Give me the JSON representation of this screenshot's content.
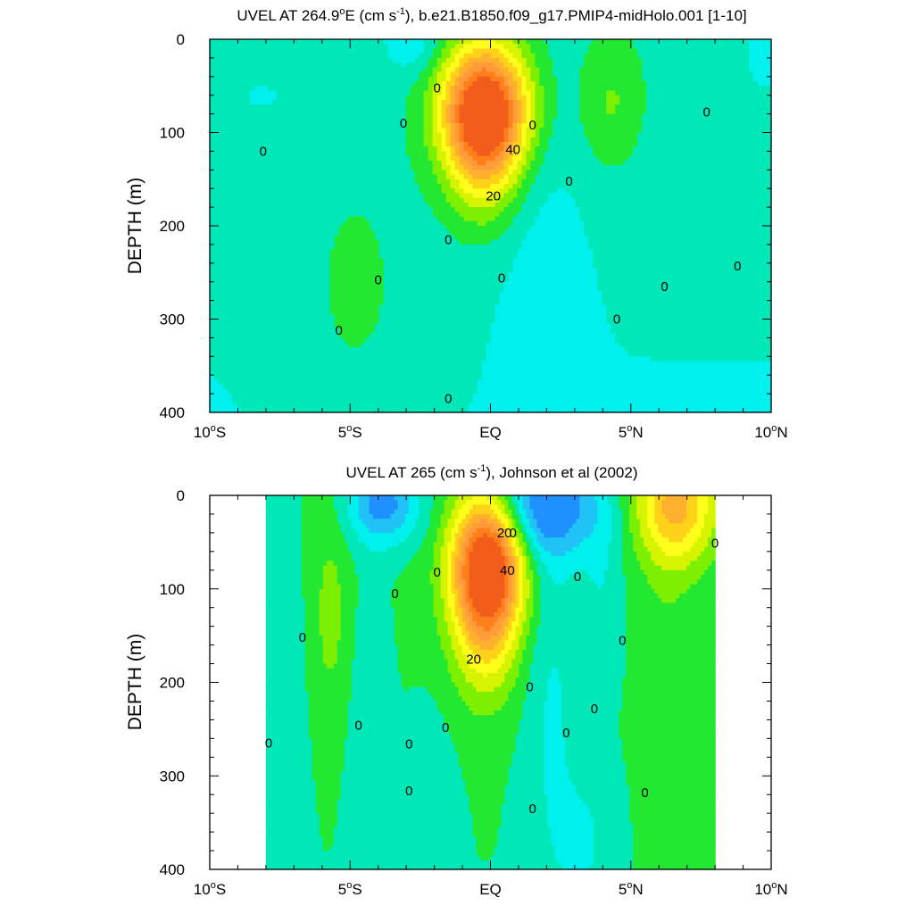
{
  "colors": {
    "levels": [
      {
        "max": -20,
        "color": "#0a5fe0"
      },
      {
        "max": -10,
        "color": "#1e90ff"
      },
      {
        "max": -5,
        "color": "#21c2f5"
      },
      {
        "max": 0,
        "color": "#00f0ee"
      },
      {
        "max": 5,
        "color": "#00e8b8"
      },
      {
        "max": 10,
        "color": "#22e832"
      },
      {
        "max": 15,
        "color": "#7cf000"
      },
      {
        "max": 20,
        "color": "#d6f400"
      },
      {
        "max": 25,
        "color": "#fffe1a"
      },
      {
        "max": 30,
        "color": "#ffd21a"
      },
      {
        "max": 35,
        "color": "#ffb02e"
      },
      {
        "max": 40,
        "color": "#ff9b3a"
      },
      {
        "max": 45,
        "color": "#ff7f1a"
      },
      {
        "max": 999,
        "color": "#f25d1b"
      }
    ]
  },
  "chart_data": [
    {
      "type": "heatmap",
      "subtype": "contour",
      "title": "UVEL AT 264.9°E (cm s-1), b.e21.B1850.f09_g17.PMIP4-midHolo.001 [1-10]",
      "title_parts": {
        "pre": "UVEL AT 264.9",
        "deg": "o",
        "mid": "E (cm s",
        "sup": "-1",
        "post": "), b.e21.B1850.f09_g17.PMIP4-midHolo.001 [1-10]"
      },
      "xlabel": "",
      "ylabel": "DEPTH (m)",
      "xlim": [
        -10,
        10
      ],
      "ylim": [
        400,
        0
      ],
      "x_ticks": [
        {
          "value": -10,
          "label": "10",
          "deg": "o",
          "suffix": "S"
        },
        {
          "value": -5,
          "label": "5",
          "deg": "o",
          "suffix": "S"
        },
        {
          "value": 0,
          "label": "EQ",
          "deg": "",
          "suffix": ""
        },
        {
          "value": 5,
          "label": "5",
          "deg": "o",
          "suffix": "N"
        },
        {
          "value": 10,
          "label": "10",
          "deg": "o",
          "suffix": "N"
        }
      ],
      "y_ticks": [
        0,
        100,
        200,
        300,
        400
      ],
      "data_xlim": [
        -10,
        10
      ],
      "contour_interval": 5,
      "contour_labels": [
        {
          "x": -1.9,
          "y": 52,
          "text": "0"
        },
        {
          "x": -8.1,
          "y": 120,
          "text": "0"
        },
        {
          "x": -3.1,
          "y": 90,
          "text": "0"
        },
        {
          "x": 1.5,
          "y": 92,
          "text": "0"
        },
        {
          "x": 7.7,
          "y": 78,
          "text": "0"
        },
        {
          "x": 2.8,
          "y": 152,
          "text": "0"
        },
        {
          "x": -1.5,
          "y": 215,
          "text": "0"
        },
        {
          "x": -4.0,
          "y": 258,
          "text": "0"
        },
        {
          "x": 0.4,
          "y": 256,
          "text": "0"
        },
        {
          "x": 6.2,
          "y": 265,
          "text": "0"
        },
        {
          "x": 8.8,
          "y": 243,
          "text": "0"
        },
        {
          "x": 4.5,
          "y": 300,
          "text": "0"
        },
        {
          "x": -5.4,
          "y": 312,
          "text": "0"
        },
        {
          "x": -1.5,
          "y": 385,
          "text": "0"
        },
        {
          "x": 0.8,
          "y": 118,
          "text": "40"
        },
        {
          "x": 0.1,
          "y": 168,
          "text": "20"
        }
      ],
      "features": [
        {
          "x": -0.2,
          "z": 75,
          "sx": 1.1,
          "sz": 50,
          "amp": 52
        },
        {
          "x": -0.3,
          "z": 140,
          "sx": 0.9,
          "sz": 50,
          "amp": 12
        },
        {
          "x": -2.8,
          "z": 5,
          "sx": 0.8,
          "sz": 25,
          "amp": -7
        },
        {
          "x": 9.8,
          "z": 15,
          "sx": 0.6,
          "sz": 30,
          "amp": -5
        },
        {
          "x": 4.3,
          "z": 70,
          "sx": 0.8,
          "sz": 50,
          "amp": 8
        },
        {
          "x": -4.8,
          "z": 300,
          "sx": 2.0,
          "sz": 140,
          "amp": 5
        },
        {
          "x": 2.0,
          "z": 300,
          "sx": 1.0,
          "sz": 160,
          "amp": -4
        },
        {
          "x": -8.0,
          "z": 60,
          "sx": 1.3,
          "sz": 25,
          "amp": -3
        }
      ],
      "background": {
        "base": 3,
        "deep_gain": 3.5
      }
    },
    {
      "type": "heatmap",
      "subtype": "contour",
      "title": "UVEL AT 265 (cm s-1), Johnson et al (2002)",
      "title_parts": {
        "pre": "UVEL AT 265 (cm s",
        "deg": "",
        "mid": "",
        "sup": "-1",
        "post": "), Johnson et al (2002)"
      },
      "xlabel": "",
      "ylabel": "DEPTH (m)",
      "xlim": [
        -10,
        10
      ],
      "ylim": [
        400,
        0
      ],
      "x_ticks": [
        {
          "value": -10,
          "label": "10",
          "deg": "o",
          "suffix": "S"
        },
        {
          "value": -5,
          "label": "5",
          "deg": "o",
          "suffix": "S"
        },
        {
          "value": 0,
          "label": "EQ",
          "deg": "",
          "suffix": ""
        },
        {
          "value": 5,
          "label": "5",
          "deg": "o",
          "suffix": "N"
        },
        {
          "value": 10,
          "label": "10",
          "deg": "o",
          "suffix": "N"
        }
      ],
      "y_ticks": [
        0,
        100,
        200,
        300,
        400
      ],
      "data_xlim": [
        -8,
        8
      ],
      "contour_interval": 5,
      "contour_labels": [
        {
          "x": 0.5,
          "y": 40,
          "text": "20"
        },
        {
          "x": 0.8,
          "y": 40,
          "text": "0"
        },
        {
          "x": -1.9,
          "y": 82,
          "text": "0"
        },
        {
          "x": -3.4,
          "y": 105,
          "text": "0"
        },
        {
          "x": 3.1,
          "y": 87,
          "text": "0"
        },
        {
          "x": 8.0,
          "y": 51,
          "text": "0"
        },
        {
          "x": 0.6,
          "y": 80,
          "text": "40"
        },
        {
          "x": -0.6,
          "y": 175,
          "text": "20"
        },
        {
          "x": -6.7,
          "y": 152,
          "text": "0"
        },
        {
          "x": 4.7,
          "y": 155,
          "text": "0"
        },
        {
          "x": 1.4,
          "y": 205,
          "text": "0"
        },
        {
          "x": 3.7,
          "y": 228,
          "text": "0"
        },
        {
          "x": -4.7,
          "y": 246,
          "text": "0"
        },
        {
          "x": -1.6,
          "y": 248,
          "text": "0"
        },
        {
          "x": -7.9,
          "y": 265,
          "text": "0"
        },
        {
          "x": -2.9,
          "y": 266,
          "text": "0"
        },
        {
          "x": 2.7,
          "y": 254,
          "text": "0"
        },
        {
          "x": -2.9,
          "y": 316,
          "text": "0"
        },
        {
          "x": 5.5,
          "y": 318,
          "text": "0"
        },
        {
          "x": 1.5,
          "y": 335,
          "text": "0"
        }
      ],
      "features": [
        {
          "x": -0.1,
          "z": 70,
          "sx": 0.9,
          "sz": 55,
          "amp": 50
        },
        {
          "x": -0.2,
          "z": 150,
          "sx": 0.8,
          "sz": 55,
          "amp": 14
        },
        {
          "x": 6.6,
          "z": 10,
          "sx": 1.0,
          "sz": 45,
          "amp": 26
        },
        {
          "x": -3.8,
          "z": 10,
          "sx": 0.9,
          "sz": 30,
          "amp": -18
        },
        {
          "x": 1.8,
          "z": 10,
          "sx": 1.5,
          "sz": 40,
          "amp": -22
        },
        {
          "x": -5.7,
          "z": 130,
          "sx": 0.5,
          "sz": 80,
          "amp": 6
        },
        {
          "x": -7.5,
          "z": 200,
          "sx": 0.6,
          "sz": 160,
          "amp": -5
        },
        {
          "x": -4.3,
          "z": 280,
          "sx": 0.5,
          "sz": 140,
          "amp": -5
        },
        {
          "x": 2.2,
          "z": 220,
          "sx": 0.7,
          "sz": 180,
          "amp": -6
        },
        {
          "x": 4.0,
          "z": 100,
          "sx": 0.5,
          "sz": 70,
          "amp": -5
        },
        {
          "x": -2.2,
          "z": 330,
          "sx": 0.6,
          "sz": 70,
          "amp": -4
        },
        {
          "x": 3.5,
          "z": 370,
          "sx": 0.7,
          "sz": 60,
          "amp": -5
        },
        {
          "x": 6.3,
          "z": 250,
          "sx": 0.6,
          "sz": 150,
          "amp": 4
        }
      ],
      "background": {
        "base": 6,
        "deep_gain": 1.0
      }
    }
  ]
}
